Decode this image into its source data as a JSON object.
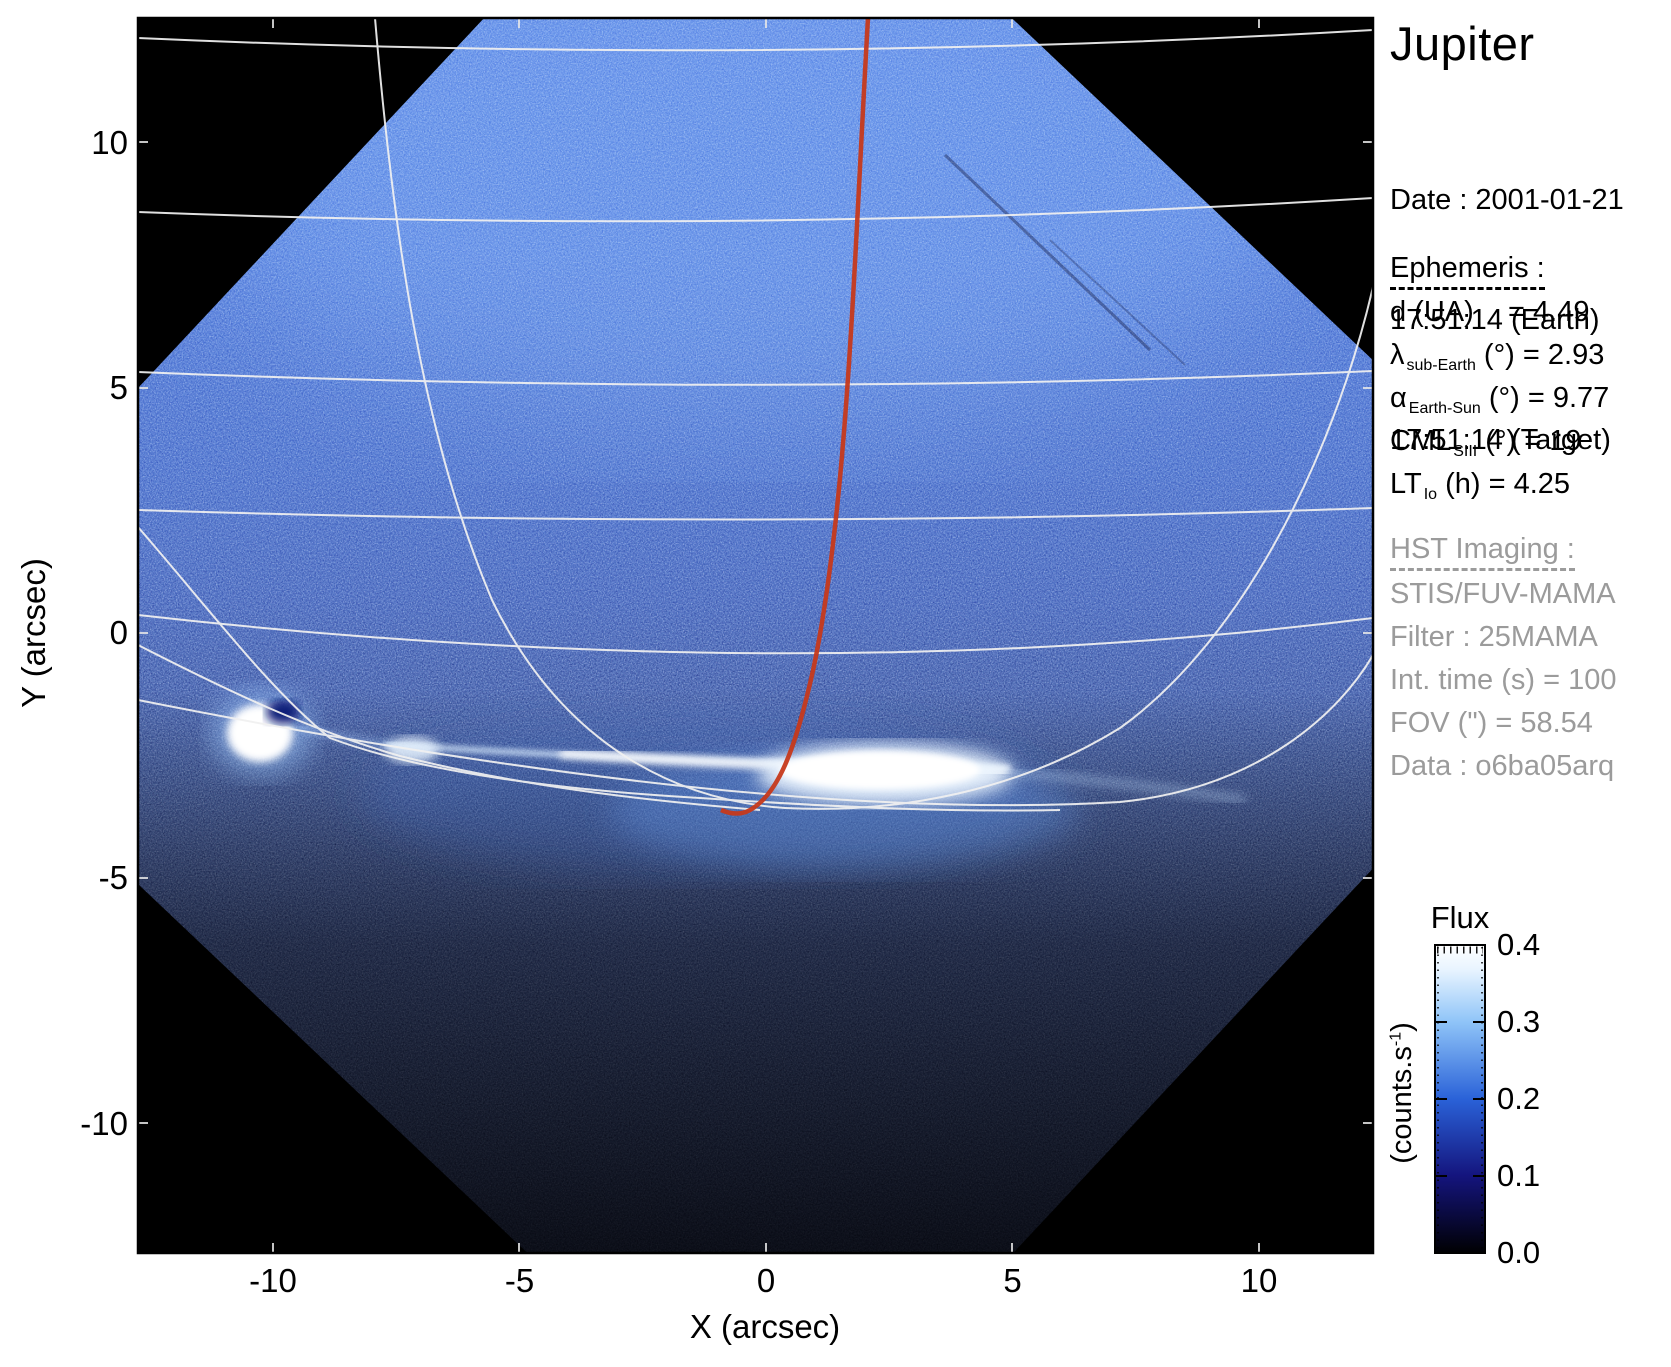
{
  "title": "Jupiter",
  "observation": {
    "date_line": "Date : 2001-01-21",
    "earth_time": "17:51:14 (Earth)",
    "target_time": "17:51:14 (Target)"
  },
  "ephemeris": {
    "heading": "Ephemeris :",
    "rows": [
      {
        "symbol": "d (UA)",
        "sub": "",
        "rest": "    = 4.49"
      },
      {
        "symbol": "λ",
        "sub": "sub-Earth",
        "rest": " (°) = 2.93"
      },
      {
        "symbol": "α",
        "sub": "Earth-Sun",
        "rest": " (°) = 9.77"
      },
      {
        "symbol": "CML",
        "sub": "SIII",
        "rest": " (°) = 19"
      },
      {
        "symbol": "LT",
        "sub": "Io",
        "rest": " (h) = 4.25"
      }
    ]
  },
  "hst": {
    "heading": "HST Imaging :",
    "rows": [
      "STIS/FUV-MAMA",
      "Filter : 25MAMA",
      "Int. time (s) = 100",
      "FOV (\") = 58.54",
      "Data : o6ba05arq"
    ]
  },
  "axes": {
    "x_label": "X (arcsec)",
    "y_label": "Y (arcsec)",
    "x_ticks": [
      -10,
      -5,
      0,
      5,
      10
    ],
    "y_ticks": [
      10,
      5,
      0,
      -5,
      -10
    ]
  },
  "colorbar": {
    "title": "Flux",
    "unit_pre": "(counts.s",
    "unit_sup": "-1",
    "unit_post": ")",
    "ticks": [
      "0.4",
      "0.3",
      "0.2",
      "0.1",
      "0.0"
    ]
  },
  "colors": {
    "page_background": "#ffffff",
    "plot_background": "#000000",
    "grid_overlay": "#f1f1f1",
    "meridian_marker": "#c6391b",
    "secondary_text": "#9b9b9b",
    "image_blue_bright": "#1d42c2",
    "image_blue_dark": "#050c3a"
  },
  "chart_data": {
    "type": "heatmap",
    "title": "Jupiter",
    "xlabel": "X (arcsec)",
    "ylabel": "Y (arcsec)",
    "xlim": [
      -12.7,
      12.3
    ],
    "ylim": [
      -12.6,
      12.5
    ],
    "x_ticks": [
      -10,
      -5,
      0,
      5,
      10
    ],
    "y_ticks": [
      10,
      5,
      0,
      -5,
      -10
    ],
    "grid": false,
    "colorbar": {
      "title": "Flux",
      "label": "(counts.s-1)",
      "min": 0.0,
      "max": 0.4,
      "ticks": [
        0.4,
        0.3,
        0.2,
        0.1,
        0.0
      ],
      "colormap": "black -> dark navy -> blue -> light blue -> white"
    },
    "image_description": {
      "detector_footprint": "square FOV rotated ~45 deg (diamond), blue FUV speckle noise, black outside",
      "disk_glow": "brighter blue toward upper half of diamond, very dark below auroral arc",
      "overlay_grid": "white planetary latitude/longitude grid: 5 near-horizontal parallels, steep converging curves and a large U-shaped limb curve meeting near the auroral arc"
    },
    "features": [
      {
        "name": "auroral bright spot",
        "x_arcsec": -10.2,
        "y_arcsec": -2.0
      },
      {
        "name": "main auroral arc",
        "x_from_arcsec": -7.6,
        "x_to_arcsec": 5.0,
        "y_arcsec": -2.7
      },
      {
        "name": "brightest arc segment",
        "x_from_arcsec": 1.0,
        "x_to_arcsec": 4.6,
        "y_arcsec": -2.9
      },
      {
        "name": "red meridian marker",
        "x_top_arcsec": 2.1,
        "y_top_arcsec": 12.5,
        "x_end_arcsec": -0.9,
        "y_end_arcsec": -3.6
      }
    ],
    "annotations": {
      "d_UA": 4.49,
      "lambda_sub_earth_deg": 2.93,
      "alpha_earth_sun_deg": 9.77,
      "CML_SIII_deg": 19,
      "LT_Io_h": 4.25,
      "int_time_s": 100,
      "FOV_arcsec": 58.54,
      "dataset": "o6ba05arq",
      "instrument": "STIS/FUV-MAMA",
      "filter": "25MAMA",
      "date": "2001-01-21",
      "time_earth": "17:51:14",
      "time_target": "17:51:14"
    }
  }
}
